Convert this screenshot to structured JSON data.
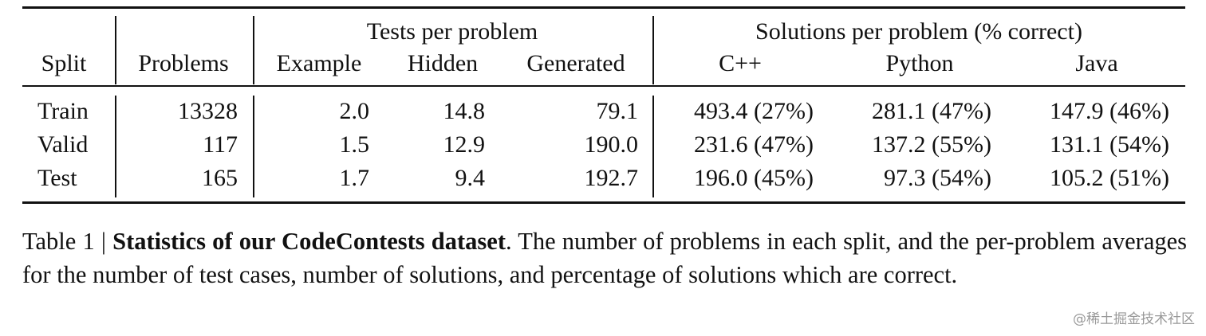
{
  "table": {
    "group_headers": [
      "Tests per problem",
      "Solutions per problem (% correct)"
    ],
    "columns": [
      "Split",
      "Problems",
      "Example",
      "Hidden",
      "Generated",
      "C++",
      "Python",
      "Java"
    ],
    "rows": [
      [
        "Train",
        "13328",
        "2.0",
        "14.8",
        "79.1",
        "493.4 (27%)",
        "281.1 (47%)",
        "147.9 (46%)"
      ],
      [
        "Valid",
        "117",
        "1.5",
        "12.9",
        "190.0",
        "231.6 (47%)",
        "137.2 (55%)",
        "131.1 (54%)"
      ],
      [
        "Test",
        "165",
        "1.7",
        "9.4",
        "192.7",
        "196.0 (45%)",
        "97.3 (54%)",
        "105.2 (51%)"
      ]
    ]
  },
  "caption": {
    "label": "Table 1 |",
    "title": "Statistics of our CodeContests dataset",
    "text": ". The number of problems in each split, and the per-problem averages for the number of test cases, number of solutions, and percentage of solutions which are correct."
  },
  "watermark": "@稀土掘金技术社区"
}
